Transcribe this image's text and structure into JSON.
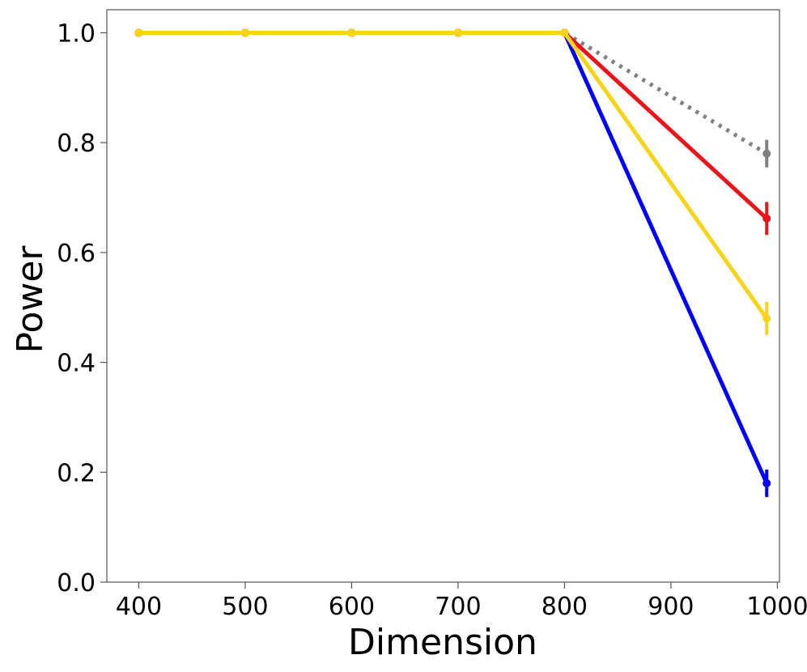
{
  "chart_data": {
    "type": "line",
    "title": "",
    "xlabel": "Dimension",
    "ylabel": "Power",
    "xlim": [
      370,
      1002
    ],
    "ylim": [
      0.0,
      1.042
    ],
    "x_ticks": [
      400,
      500,
      600,
      700,
      800,
      900,
      1000
    ],
    "y_ticks": [
      0.0,
      0.2,
      0.4,
      0.6,
      0.8,
      1.0
    ],
    "x_tick_labels": [
      "400",
      "500",
      "600",
      "700",
      "800",
      "900",
      "1000"
    ],
    "y_tick_labels": [
      "0.0",
      "0.2",
      "0.4",
      "0.6",
      "0.8",
      "1.0"
    ],
    "grid": false,
    "legend": "none",
    "x": [
      400,
      500,
      600,
      700,
      800,
      990
    ],
    "series": [
      {
        "color": "#808080",
        "style": "dotted",
        "values": [
          1.0,
          1.0,
          1.0,
          1.0,
          1.0,
          0.78
        ],
        "error": [
          0,
          0,
          0,
          0,
          0,
          0.025
        ]
      },
      {
        "color": "#0000ff",
        "style": "solid",
        "values": [
          1.0,
          1.0,
          1.0,
          1.0,
          1.0,
          0.18
        ],
        "error": [
          0,
          0,
          0,
          0,
          0,
          0.025
        ]
      },
      {
        "color": "#e8161b",
        "style": "solid",
        "values": [
          1.0,
          1.0,
          1.0,
          1.0,
          1.0,
          0.662
        ],
        "error": [
          0,
          0,
          0,
          0,
          0,
          0.03
        ]
      },
      {
        "color": "#f7d417",
        "style": "solid",
        "values": [
          1.0,
          1.0,
          1.0,
          1.0,
          1.0,
          0.48
        ],
        "error": [
          0,
          0,
          0,
          0,
          0,
          0.03
        ]
      }
    ]
  }
}
